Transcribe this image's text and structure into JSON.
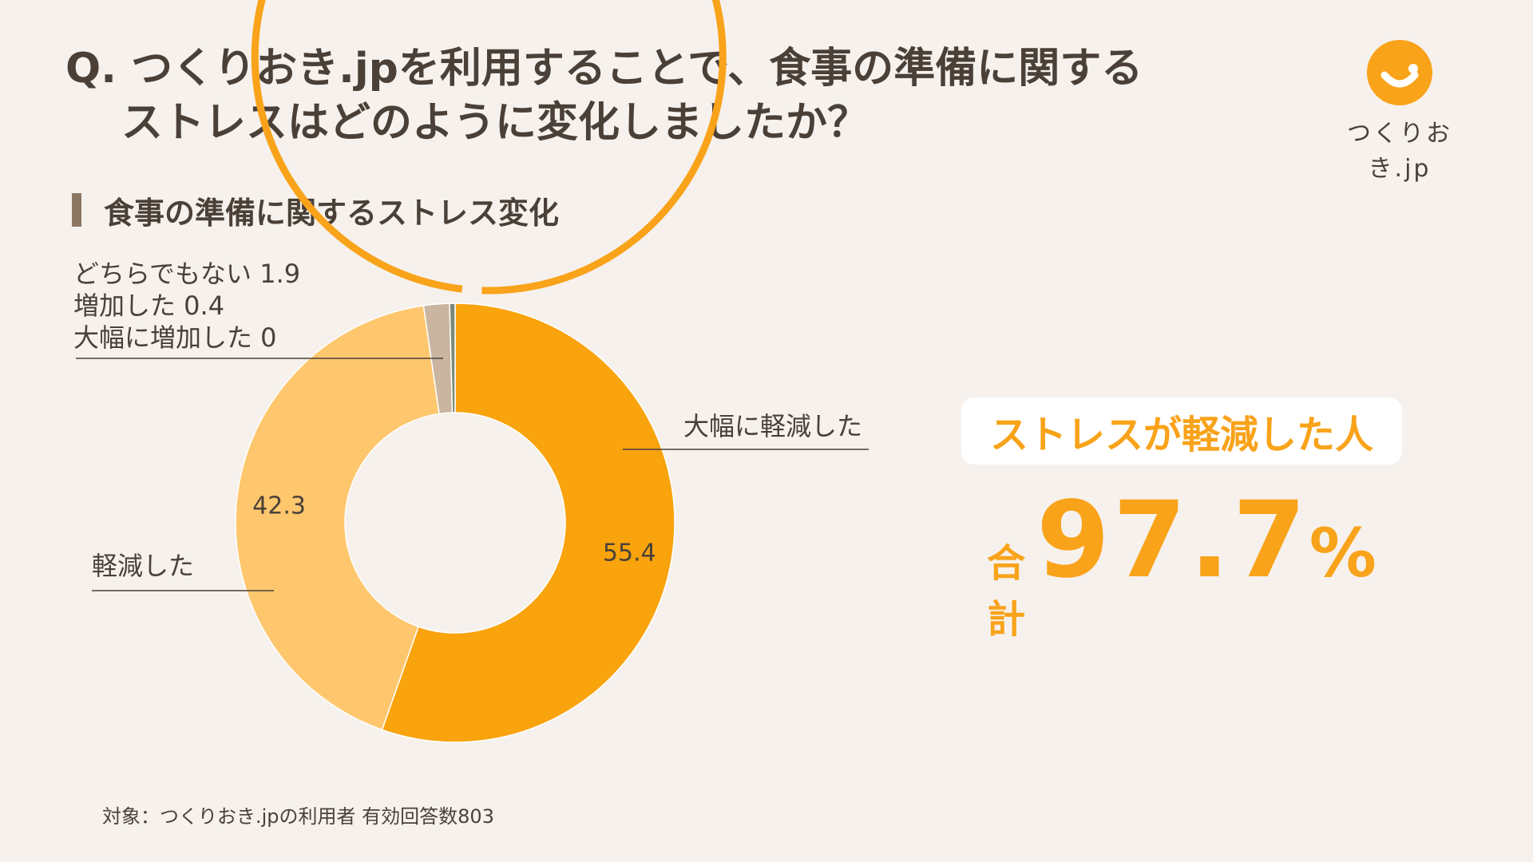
{
  "header": {
    "question_line1": "Q. つくりおき.jpを利用することで、食事の準備に関する",
    "question_line2": "ストレスはどのように変化しましたか？"
  },
  "logo": {
    "text": "つくりおき.jp",
    "icon": "smile-icon",
    "color": "#f9a31a"
  },
  "chart_data": {
    "type": "pie",
    "title": "食事の準備に関するストレス変化",
    "categories": [
      "大幅に軽減した",
      "軽減した",
      "どちらでもない",
      "増加した",
      "大幅に増加した"
    ],
    "values": [
      55.4,
      42.3,
      1.9,
      0.4,
      0
    ],
    "colors": [
      "#f9a30d",
      "#fec76e",
      "#c9b5a0",
      "#7a8a78",
      "#4a4038"
    ],
    "slice_labels": [
      "55.4",
      "42.3",
      "",
      "",
      ""
    ],
    "callouts": [
      "大幅に軽減した",
      "軽減した",
      "どちらでもない 1.9",
      "増加した 0.4",
      "大幅に増加した 0"
    ],
    "donut": true,
    "highlight_ring": "軽減 total 97.7"
  },
  "summary": {
    "label": "ストレスが軽減した人",
    "total_label": "合計",
    "total_value": "97.7",
    "total_unit": "%"
  },
  "footnote": "対象：つくりおき.jpの利用者 有効回答数803"
}
